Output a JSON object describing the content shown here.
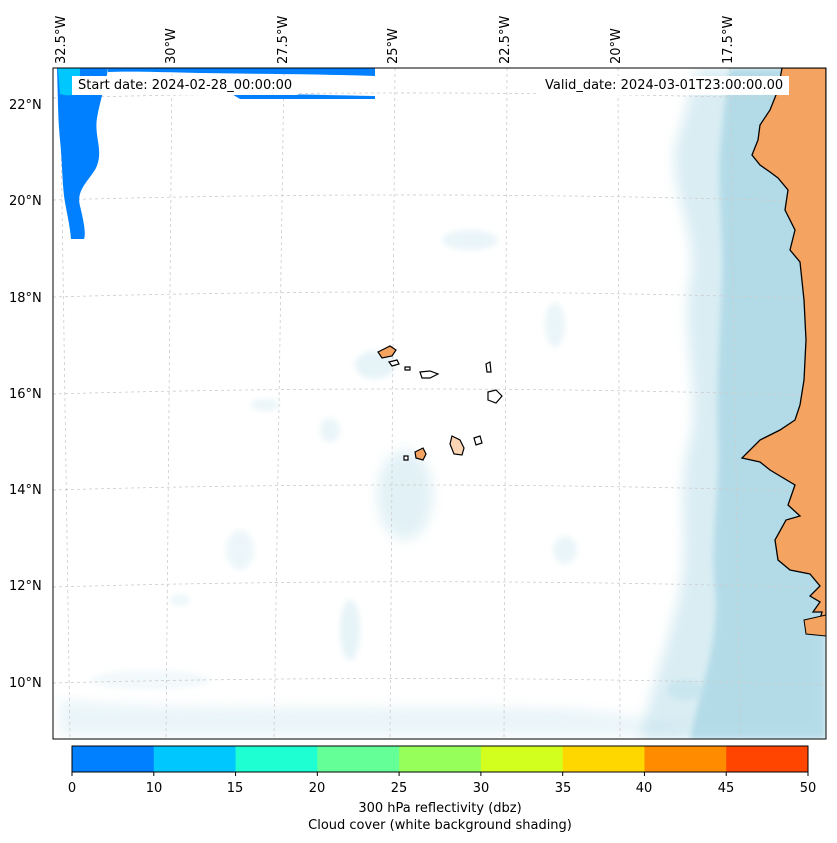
{
  "map": {
    "start_label": "Start date: 2024-02-28_00:00:00",
    "valid_label": "Valid_date: 2024-03-01T23:00:00.00",
    "lon_labels": [
      "32.5°W",
      "30°W",
      "27.5°W",
      "25°W",
      "22.5°W",
      "20°W",
      "17.5°W"
    ],
    "lat_labels": [
      "22°N",
      "20°N",
      "18°N",
      "16°N",
      "14°N",
      "12°N",
      "10°N"
    ],
    "colors": {
      "land": "#f4a460",
      "cloud": "#add8e6",
      "coast": "#000000",
      "grid": "#cccccc"
    }
  },
  "colorbar": {
    "ticks": [
      "0",
      "10",
      "15",
      "20",
      "25",
      "30",
      "35",
      "40",
      "45",
      "50"
    ],
    "colors": [
      "#0080ff",
      "#00c8ff",
      "#1effd2",
      "#64ff96",
      "#96ff5a",
      "#d2ff1e",
      "#ffd700",
      "#ff8c00",
      "#ff4500"
    ],
    "label": "300 hPa reflectivity (dbz)",
    "sublabel": "Cloud cover (white background shading)"
  }
}
